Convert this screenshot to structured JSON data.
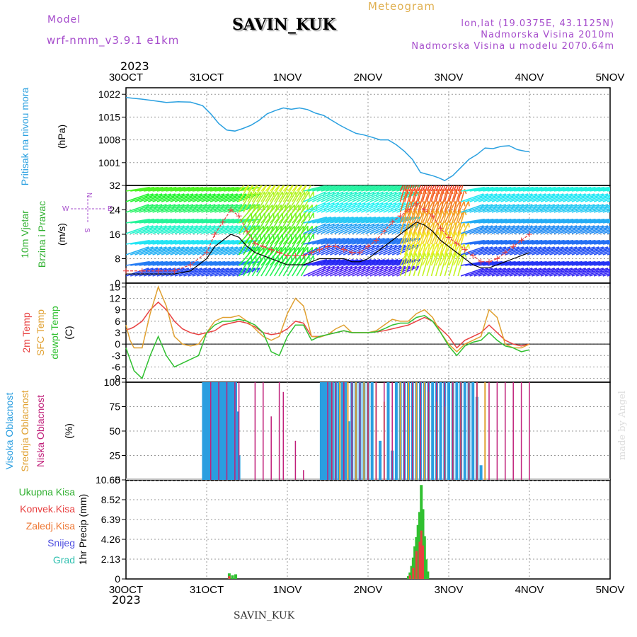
{
  "header": {
    "model_label": "Model",
    "model_version": "wrf-nmm_v3.9.1 e1km",
    "station": "SAVIN_KUK",
    "chart_kind": "Meteogram",
    "lonlat": "lon,lat (19.0375E, 43.1125N)",
    "elevation": "Nadmorska Visina 2010m",
    "model_elevation": "Nadmorska Visina u modelu 2070.64m",
    "year_top": "2023",
    "year_bottom": "2023",
    "bottom_station": "SAVIN_KUK",
    "watermark": "made by Angel"
  },
  "colors": {
    "pressure": "#2aa0e0",
    "temp2m": "#e84040",
    "sfc": "#e0a030",
    "dewpt": "#30c030",
    "cloud_high": "#2a9ee0",
    "cloud_mid": "#e0a030",
    "cloud_low": "#c0207a",
    "label_green": "#30b030",
    "label_purple": "#a64dcc"
  },
  "chart_data": [
    {
      "type": "line",
      "panel": "pressure",
      "ylabel": [
        "Pritisak na nivou mora",
        "(hPa)"
      ],
      "yticks": [
        1001,
        1008,
        1015,
        1022
      ],
      "ylim": [
        994,
        1024
      ],
      "x_dates": [
        "30OCT",
        "31OCT",
        "1NOV",
        "2NOV",
        "3NOV",
        "4NOV",
        "5NOV"
      ],
      "series": [
        {
          "key": "pressure",
          "t": [
            0,
            0.08,
            0.2,
            0.35,
            0.5,
            0.65,
            0.8,
            0.95,
            1.05,
            1.15,
            1.25,
            1.35,
            1.45,
            1.55,
            1.65,
            1.75,
            1.85,
            1.95,
            2.05,
            2.15,
            2.25,
            2.35,
            2.45,
            2.55,
            2.65,
            2.75,
            2.85,
            2.95,
            3.05,
            3.15,
            3.25,
            3.35,
            3.45,
            3.55,
            3.6,
            3.65,
            3.72,
            3.8,
            3.88,
            3.95,
            4.05,
            4.15,
            4.25,
            4.35,
            4.45,
            4.55,
            4.65,
            4.75,
            4.85,
            4.95,
            5.0
          ],
          "values": [
            1021,
            1020.8,
            1020.5,
            1020,
            1019.5,
            1019.7,
            1019.6,
            1018.5,
            1016,
            1013,
            1011,
            1010.7,
            1011.5,
            1012.5,
            1014,
            1016,
            1017,
            1017.8,
            1017.4,
            1017.8,
            1017.3,
            1016.2,
            1015.5,
            1014,
            1012.5,
            1011.2,
            1010,
            1009.5,
            1008.8,
            1008,
            1008,
            1006.5,
            1004.5,
            1002,
            1000,
            998,
            997.5,
            997,
            996.3,
            995.5,
            997,
            999.5,
            1002,
            1003.5,
            1005.5,
            1005.3,
            1006,
            1006.2,
            1005,
            1004.5,
            1004.4
          ]
        }
      ]
    },
    {
      "type": "line",
      "panel": "wind",
      "ylabel": [
        "10m Vjetar",
        "Brzina i Pravac",
        "(m/s)"
      ],
      "compass": [
        "N",
        "E",
        "S",
        "W"
      ],
      "yticks": [
        0,
        8,
        16,
        24,
        32
      ],
      "ylim": [
        0,
        32
      ],
      "series": [
        {
          "key": "speed",
          "t": [
            0,
            0.2,
            0.4,
            0.6,
            0.8,
            1.0,
            1.1,
            1.2,
            1.3,
            1.4,
            1.5,
            1.6,
            1.7,
            1.8,
            1.9,
            2.0,
            2.1,
            2.2,
            2.3,
            2.4,
            2.5,
            2.6,
            2.7,
            2.8,
            2.9,
            3.0,
            3.1,
            3.2,
            3.3,
            3.4,
            3.5,
            3.6,
            3.7,
            3.8,
            3.9,
            4.0,
            4.1,
            4.2,
            4.3,
            4.4,
            4.5,
            4.6,
            4.7,
            4.8,
            4.9,
            5.0
          ],
          "values": [
            3,
            3,
            3,
            3,
            4,
            8,
            12,
            14,
            16,
            15,
            12,
            10,
            9,
            8,
            7,
            6,
            6,
            6,
            7,
            8,
            8,
            8,
            8,
            7,
            7,
            8,
            10,
            12,
            14,
            16,
            18,
            20,
            19,
            17,
            14,
            12,
            10,
            8,
            6,
            5,
            5,
            6,
            7,
            8,
            9,
            10
          ]
        },
        {
          "key": "gust",
          "t": [
            0,
            0.2,
            0.4,
            0.6,
            0.8,
            1.0,
            1.1,
            1.2,
            1.3,
            1.4,
            1.5,
            1.6,
            1.7,
            1.8,
            1.9,
            2.0,
            2.1,
            2.2,
            2.3,
            2.4,
            2.5,
            2.6,
            2.7,
            2.8,
            2.9,
            3.0,
            3.1,
            3.2,
            3.3,
            3.4,
            3.5,
            3.6,
            3.7,
            3.8,
            3.9,
            4.0,
            4.1,
            4.2,
            4.3,
            4.4,
            4.5,
            4.6,
            4.7,
            4.8,
            4.9,
            5.0
          ],
          "values": [
            4,
            4,
            4,
            4,
            6,
            10,
            16,
            20,
            24,
            22,
            17,
            13,
            12,
            11,
            10,
            9,
            9,
            9,
            10,
            11,
            12,
            12,
            11,
            10,
            10,
            12,
            14,
            17,
            20,
            22,
            24,
            26,
            24,
            22,
            18,
            15,
            13,
            11,
            9,
            7,
            7,
            8,
            10,
            12,
            14,
            16
          ]
        }
      ]
    },
    {
      "type": "line",
      "panel": "temperature",
      "ylabel": [
        "2m Temp",
        "SFC Temp",
        "dewpt Temp",
        "(C)"
      ],
      "yticks": [
        -9,
        -6,
        -3,
        0,
        3,
        6,
        9,
        12,
        15
      ],
      "ylim": [
        -10,
        16
      ],
      "series": [
        {
          "key": "temp2m",
          "t": [
            0,
            0.05,
            0.1,
            0.2,
            0.3,
            0.4,
            0.5,
            0.6,
            0.7,
            0.8,
            0.9,
            1.0,
            1.1,
            1.2,
            1.3,
            1.4,
            1.5,
            1.6,
            1.7,
            1.8,
            1.9,
            2.0,
            2.1,
            2.2,
            2.3,
            2.4,
            2.5,
            2.6,
            2.7,
            2.8,
            2.9,
            3.0,
            3.1,
            3.2,
            3.3,
            3.4,
            3.5,
            3.6,
            3.7,
            3.8,
            3.9,
            4.0,
            4.1,
            4.2,
            4.3,
            4.4,
            4.5,
            4.6,
            4.7,
            4.8,
            4.9,
            5.0
          ],
          "values": [
            3.8,
            4,
            4.5,
            6,
            9,
            11,
            9,
            6,
            4,
            3,
            2.5,
            3,
            3.5,
            5,
            5.5,
            6,
            5.5,
            4.5,
            3,
            2.5,
            2.8,
            4,
            6,
            5.5,
            2,
            2,
            2.5,
            3,
            3.5,
            3,
            3,
            3,
            3.2,
            3.5,
            4,
            4.5,
            5,
            6,
            7,
            6,
            4,
            2,
            -1,
            1,
            2,
            3,
            5,
            3,
            1,
            0,
            -0.5,
            0
          ]
        },
        {
          "key": "sfc",
          "t": [
            0,
            0.05,
            0.1,
            0.2,
            0.3,
            0.4,
            0.5,
            0.6,
            0.7,
            0.8,
            0.9,
            1.0,
            1.1,
            1.2,
            1.3,
            1.4,
            1.5,
            1.6,
            1.7,
            1.8,
            1.9,
            2.0,
            2.1,
            2.2,
            2.3,
            2.4,
            2.5,
            2.6,
            2.7,
            2.8,
            2.9,
            3.0,
            3.1,
            3.2,
            3.3,
            3.4,
            3.5,
            3.6,
            3.7,
            3.8,
            3.9,
            4.0,
            4.1,
            4.2,
            4.3,
            4.4,
            4.5,
            4.6,
            4.7,
            4.8,
            4.9,
            5.0
          ],
          "values": [
            5,
            1,
            -1,
            -1,
            8,
            15,
            10,
            2,
            0,
            -0.5,
            0,
            3,
            6,
            7,
            7,
            7.5,
            6,
            4,
            2,
            1,
            2,
            8,
            12,
            10,
            2,
            1.8,
            2.5,
            4,
            5,
            3,
            3,
            3,
            3.5,
            5,
            6.5,
            6,
            6,
            8,
            9,
            7,
            3,
            0,
            -2,
            0,
            1,
            2,
            9,
            7,
            0,
            -1,
            -1,
            0
          ]
        },
        {
          "key": "dewpt",
          "t": [
            0,
            0.05,
            0.1,
            0.2,
            0.3,
            0.4,
            0.5,
            0.6,
            0.7,
            0.8,
            0.9,
            1.0,
            1.1,
            1.2,
            1.3,
            1.4,
            1.5,
            1.6,
            1.7,
            1.8,
            1.9,
            2.0,
            2.1,
            2.2,
            2.3,
            2.4,
            2.5,
            2.6,
            2.7,
            2.8,
            2.9,
            3.0,
            3.1,
            3.2,
            3.3,
            3.4,
            3.5,
            3.6,
            3.7,
            3.8,
            3.9,
            4.0,
            4.1,
            4.2,
            4.3,
            4.4,
            4.5,
            4.6,
            4.7,
            4.8,
            4.9,
            5.0
          ],
          "values": [
            -1,
            -4,
            -7,
            -9,
            -3,
            2,
            -3,
            -6,
            -5,
            -4,
            -3,
            3,
            5,
            6,
            6,
            6.5,
            6,
            5,
            3,
            -2,
            -3,
            2,
            5,
            5,
            1,
            2,
            2.5,
            3,
            3.5,
            3,
            3,
            3,
            3.2,
            4,
            5,
            5.5,
            5.5,
            7,
            7.5,
            6,
            3,
            -0.5,
            -3,
            -0.5,
            0.5,
            1,
            3,
            1,
            -0.5,
            -1,
            -2,
            -1.5
          ]
        }
      ]
    },
    {
      "type": "bar",
      "panel": "clouds",
      "ylabel": [
        "Visoka Oblacnost",
        "Srednja Oblacnost",
        "Niska Oblacnost",
        "(%)"
      ],
      "yticks": [
        0,
        25,
        50,
        75,
        100
      ],
      "ylim": [
        0,
        100
      ],
      "series": [
        {
          "key": "high",
          "t": [
            0.96,
            0.98,
            1.0,
            1.02,
            1.04,
            1.06,
            1.08,
            1.1,
            1.12,
            1.14,
            1.16,
            1.18,
            1.2,
            1.22,
            1.24,
            1.26,
            1.28,
            1.3,
            1.32,
            1.34,
            1.36,
            1.38,
            1.4,
            2.42,
            2.44,
            2.46,
            2.48,
            2.5,
            2.52,
            2.54,
            2.56,
            2.6,
            2.64,
            2.68,
            2.72,
            2.76,
            2.8,
            2.85,
            2.9,
            2.95,
            3.0,
            3.05,
            3.15,
            3.25,
            3.3,
            3.35,
            3.4,
            3.45,
            3.5,
            3.55,
            3.6,
            3.65,
            3.7,
            3.75,
            3.8,
            3.85,
            3.9,
            3.95,
            4.0,
            4.05,
            4.1,
            4.15,
            4.2,
            4.25,
            4.3,
            4.35,
            4.4
          ],
          "values": [
            100,
            100,
            100,
            100,
            100,
            100,
            100,
            100,
            100,
            100,
            100,
            100,
            100,
            100,
            100,
            100,
            100,
            100,
            100,
            100,
            100,
            70,
            25,
            100,
            100,
            100,
            100,
            100,
            100,
            100,
            100,
            100,
            100,
            100,
            100,
            60,
            100,
            100,
            100,
            100,
            100,
            100,
            40,
            100,
            30,
            100,
            100,
            100,
            100,
            100,
            100,
            100,
            100,
            100,
            100,
            100,
            100,
            100,
            100,
            100,
            100,
            100,
            100,
            100,
            100,
            85,
            15
          ]
        },
        {
          "key": "mid",
          "t": [
            2.55,
            2.65,
            2.75,
            2.85,
            2.95,
            3.0,
            3.1,
            3.2,
            3.4,
            3.5,
            3.6,
            3.7,
            3.75,
            3.85,
            3.95,
            4.05,
            4.15,
            4.25,
            4.35,
            4.45
          ],
          "values": [
            100,
            100,
            100,
            100,
            100,
            100,
            100,
            80,
            100,
            100,
            100,
            100,
            90,
            80,
            75,
            100,
            100,
            100,
            100,
            100
          ]
        },
        {
          "key": "low",
          "t": [
            1.05,
            1.15,
            1.25,
            1.35,
            1.4,
            1.6,
            1.7,
            1.8,
            1.9,
            1.95,
            2.1,
            2.2,
            2.5,
            2.55,
            2.6,
            2.7,
            2.8,
            2.9,
            3.0,
            3.1,
            3.2,
            3.3,
            3.45,
            3.55,
            3.65,
            3.75,
            3.85,
            3.95,
            4.05,
            4.15,
            4.25,
            4.35,
            4.5,
            4.6,
            4.7,
            4.8,
            4.9,
            5.0
          ],
          "values": [
            100,
            100,
            100,
            100,
            100,
            100,
            100,
            65,
            100,
            90,
            40,
            10,
            100,
            100,
            100,
            100,
            100,
            100,
            100,
            100,
            100,
            100,
            100,
            100,
            100,
            100,
            100,
            100,
            100,
            100,
            100,
            100,
            100,
            100,
            100,
            100,
            100,
            100
          ]
        }
      ]
    },
    {
      "type": "bar",
      "panel": "precip",
      "ylabel": [
        "1hr Precip (mm)"
      ],
      "legend": [
        "Ukupna Kisa",
        "Konvek.Kisa",
        "Zaledj.Kisa",
        "Snijeg",
        "Grad"
      ],
      "yticks": [
        0,
        2.13,
        4.26,
        6.39,
        8.52,
        10.65
      ],
      "ylim": [
        0,
        10.65
      ],
      "series": [
        {
          "key": "total",
          "t": [
            1.28,
            1.32,
            1.36,
            3.5,
            3.52,
            3.54,
            3.56,
            3.58,
            3.6,
            3.62,
            3.64,
            3.66,
            3.68,
            3.7,
            3.72,
            3.74
          ],
          "values": [
            0.6,
            0.4,
            0.5,
            0.3,
            0.7,
            1.4,
            2.3,
            3.5,
            4.5,
            5.8,
            7.2,
            10.1,
            7.5,
            4.6,
            2.1,
            0.8
          ]
        },
        {
          "key": "convective",
          "t": [
            1.28,
            3.52,
            3.56,
            3.6,
            3.64,
            3.66,
            3.68
          ],
          "values": [
            0.3,
            0.4,
            1.2,
            3,
            4,
            5.2,
            3.6
          ]
        }
      ]
    }
  ]
}
